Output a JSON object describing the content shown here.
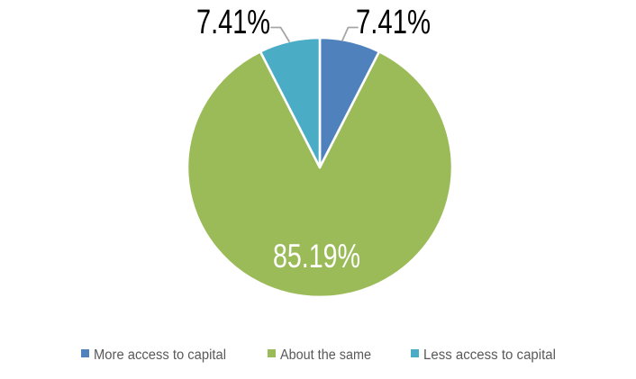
{
  "chart_data": {
    "type": "pie",
    "title": "",
    "categories": [
      "More access to capital",
      "About the same",
      "Less access to capital"
    ],
    "values": [
      7.41,
      85.19,
      7.41
    ],
    "slices": [
      {
        "label": "More access to capital",
        "value": 7.41,
        "display": "7.41%",
        "color": "#4F81BD",
        "label_placement": "outside-top-right"
      },
      {
        "label": "About the same",
        "value": 85.19,
        "display": "85.19%",
        "color": "#9BBB59",
        "label_placement": "inside"
      },
      {
        "label": "Less access to capital",
        "value": 7.41,
        "display": "7.41%",
        "color": "#4BACC6",
        "label_placement": "outside-top-left"
      }
    ],
    "start_angle_deg": 0,
    "direction": "clockwise",
    "data_label_format": "percent",
    "legend_position": "bottom",
    "grid": false
  },
  "legend": {
    "items": [
      {
        "label": "More access to capital",
        "color": "#4F81BD"
      },
      {
        "label": "About the same",
        "color": "#9BBB59"
      },
      {
        "label": "Less access to capital",
        "color": "#4BACC6"
      }
    ]
  },
  "colors": {
    "background": "#FFFFFF",
    "slice_border": "#FFFFFF",
    "leader_line": "#A6A6A6",
    "outside_label_text": "#000000",
    "inside_label_text": "#FFFFFF",
    "legend_text": "#595959"
  }
}
